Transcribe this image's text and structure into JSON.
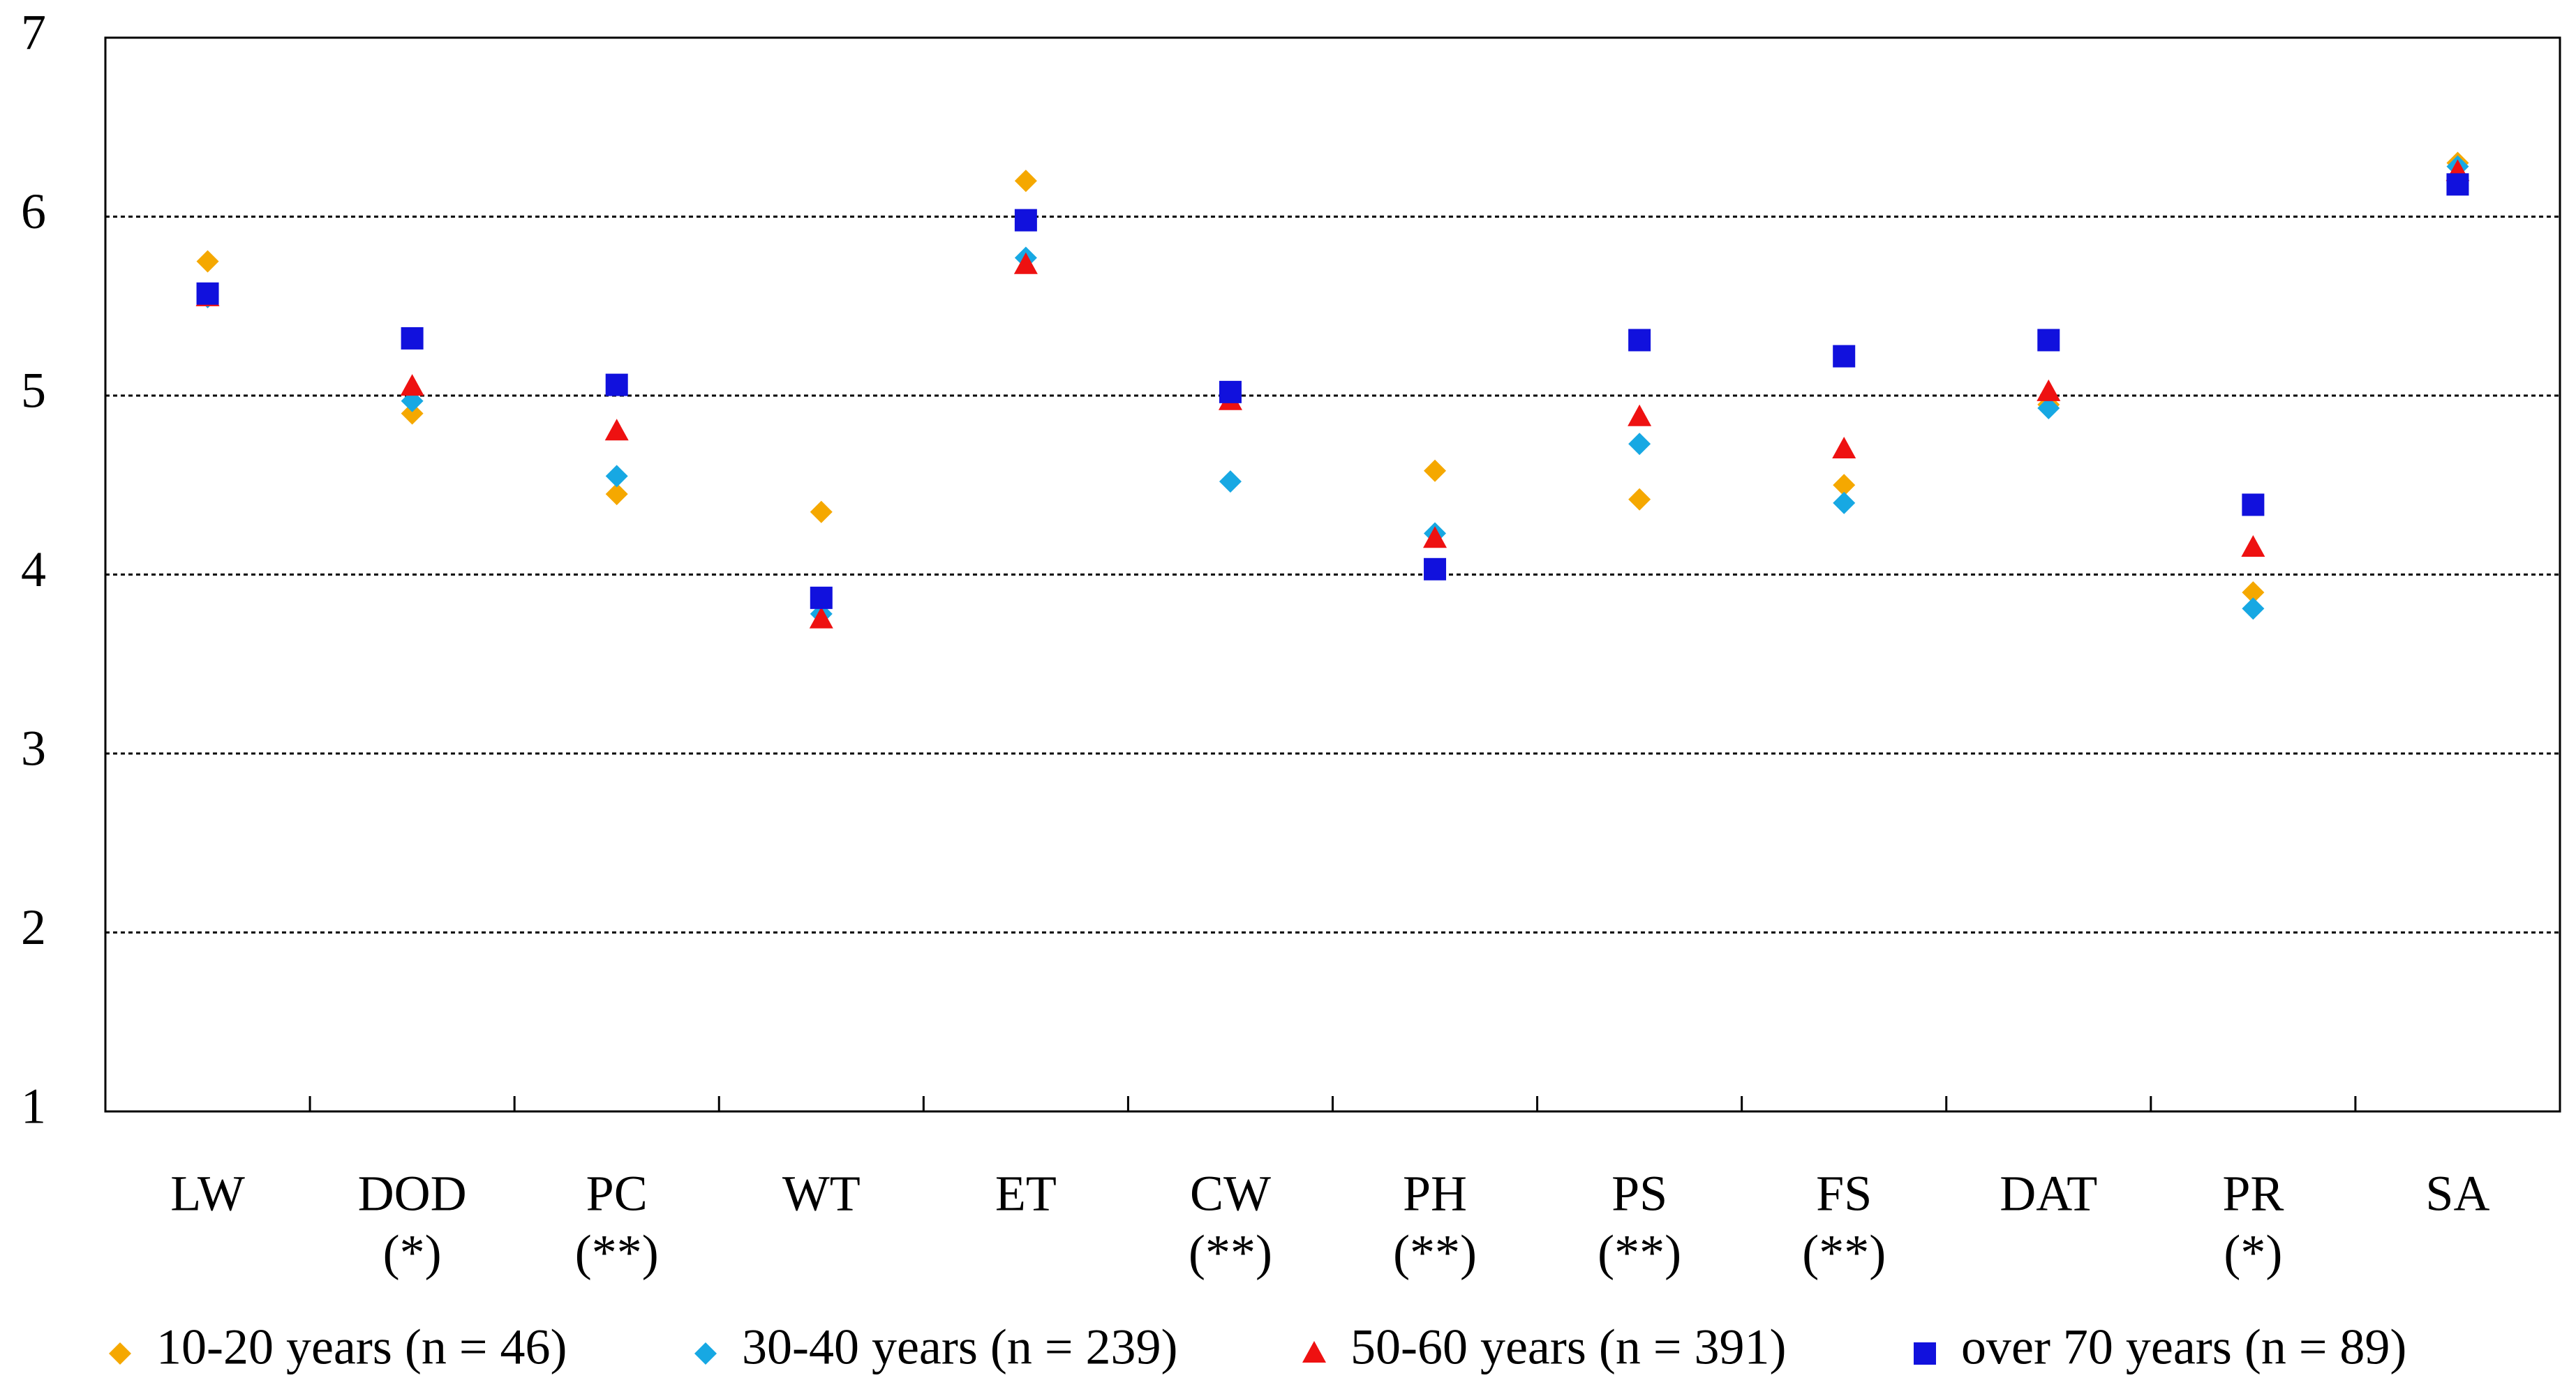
{
  "chart_data": {
    "type": "scatter",
    "categories": [
      "LW",
      "DOD",
      "PC",
      "WT",
      "ET",
      "CW",
      "PH",
      "PS",
      "FS",
      "DAT",
      "PR",
      "SA"
    ],
    "significance": [
      null,
      "(*)",
      "(**)",
      null,
      null,
      "(**)",
      "(**)",
      "(**)",
      "(**)",
      null,
      "(*)",
      null
    ],
    "series": [
      {
        "name": "10-20 years (n = 46)",
        "color": "#f5a800",
        "marker": "diamond",
        "values": [
          5.75,
          4.9,
          4.45,
          4.35,
          6.2,
          5.0,
          4.58,
          4.42,
          4.5,
          4.95,
          3.9,
          6.3
        ]
      },
      {
        "name": "30-40 years (n = 239)",
        "color": "#17a8e3",
        "marker": "diamond",
        "values": [
          5.55,
          4.97,
          4.55,
          3.78,
          5.77,
          4.52,
          4.23,
          4.73,
          4.4,
          4.93,
          3.81,
          6.28
        ]
      },
      {
        "name": "50-60 years (n = 391)",
        "color": "#ee1111",
        "marker": "triangle",
        "values": [
          5.55,
          5.05,
          4.8,
          3.75,
          5.73,
          4.97,
          4.2,
          4.88,
          4.7,
          5.02,
          4.15,
          6.25
        ]
      },
      {
        "name": "over 70 years (n = 89)",
        "color": "#1111dd",
        "marker": "square",
        "values": [
          5.57,
          5.32,
          5.06,
          3.87,
          5.98,
          5.02,
          4.03,
          5.31,
          5.22,
          5.31,
          4.39,
          6.18
        ]
      }
    ],
    "ylim": [
      1,
      7
    ],
    "yticks": [
      1,
      2,
      3,
      4,
      5,
      6,
      7
    ],
    "grid": true
  }
}
